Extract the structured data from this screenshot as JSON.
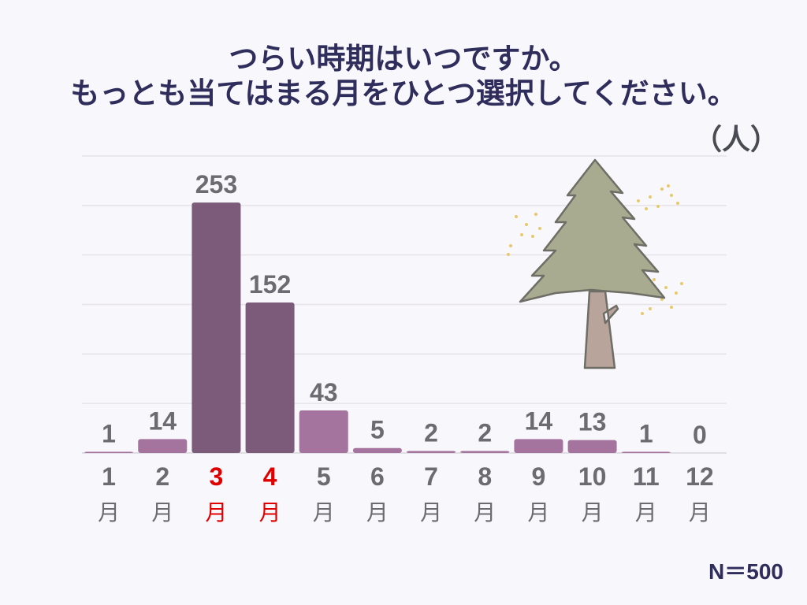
{
  "chart_data": {
    "type": "bar",
    "title": [
      "つらい時期はいつですか。",
      "もっとも当てはまる月をひとつ選択してください。"
    ],
    "unit_label": "（人）",
    "note": "N＝500",
    "categories": [
      "1",
      "2",
      "3",
      "4",
      "5",
      "6",
      "7",
      "8",
      "9",
      "10",
      "11",
      "12"
    ],
    "category_suffix": "月",
    "values": [
      1,
      14,
      253,
      152,
      43,
      5,
      2,
      2,
      14,
      13,
      1,
      0
    ],
    "highlighted": [
      false,
      false,
      true,
      true,
      false,
      false,
      false,
      false,
      false,
      false,
      false,
      false
    ],
    "ylim": [
      0,
      300
    ],
    "gridlines": [
      0,
      50,
      100,
      150,
      200,
      250,
      300
    ],
    "grid": true,
    "xlabel": "",
    "ylabel": "",
    "colors": {
      "bar": "#a4739e",
      "bar_highlight": "#7b5b79",
      "label": "#6c6b72",
      "label_highlight": "#e00000",
      "title": "#2e2d5c"
    }
  }
}
